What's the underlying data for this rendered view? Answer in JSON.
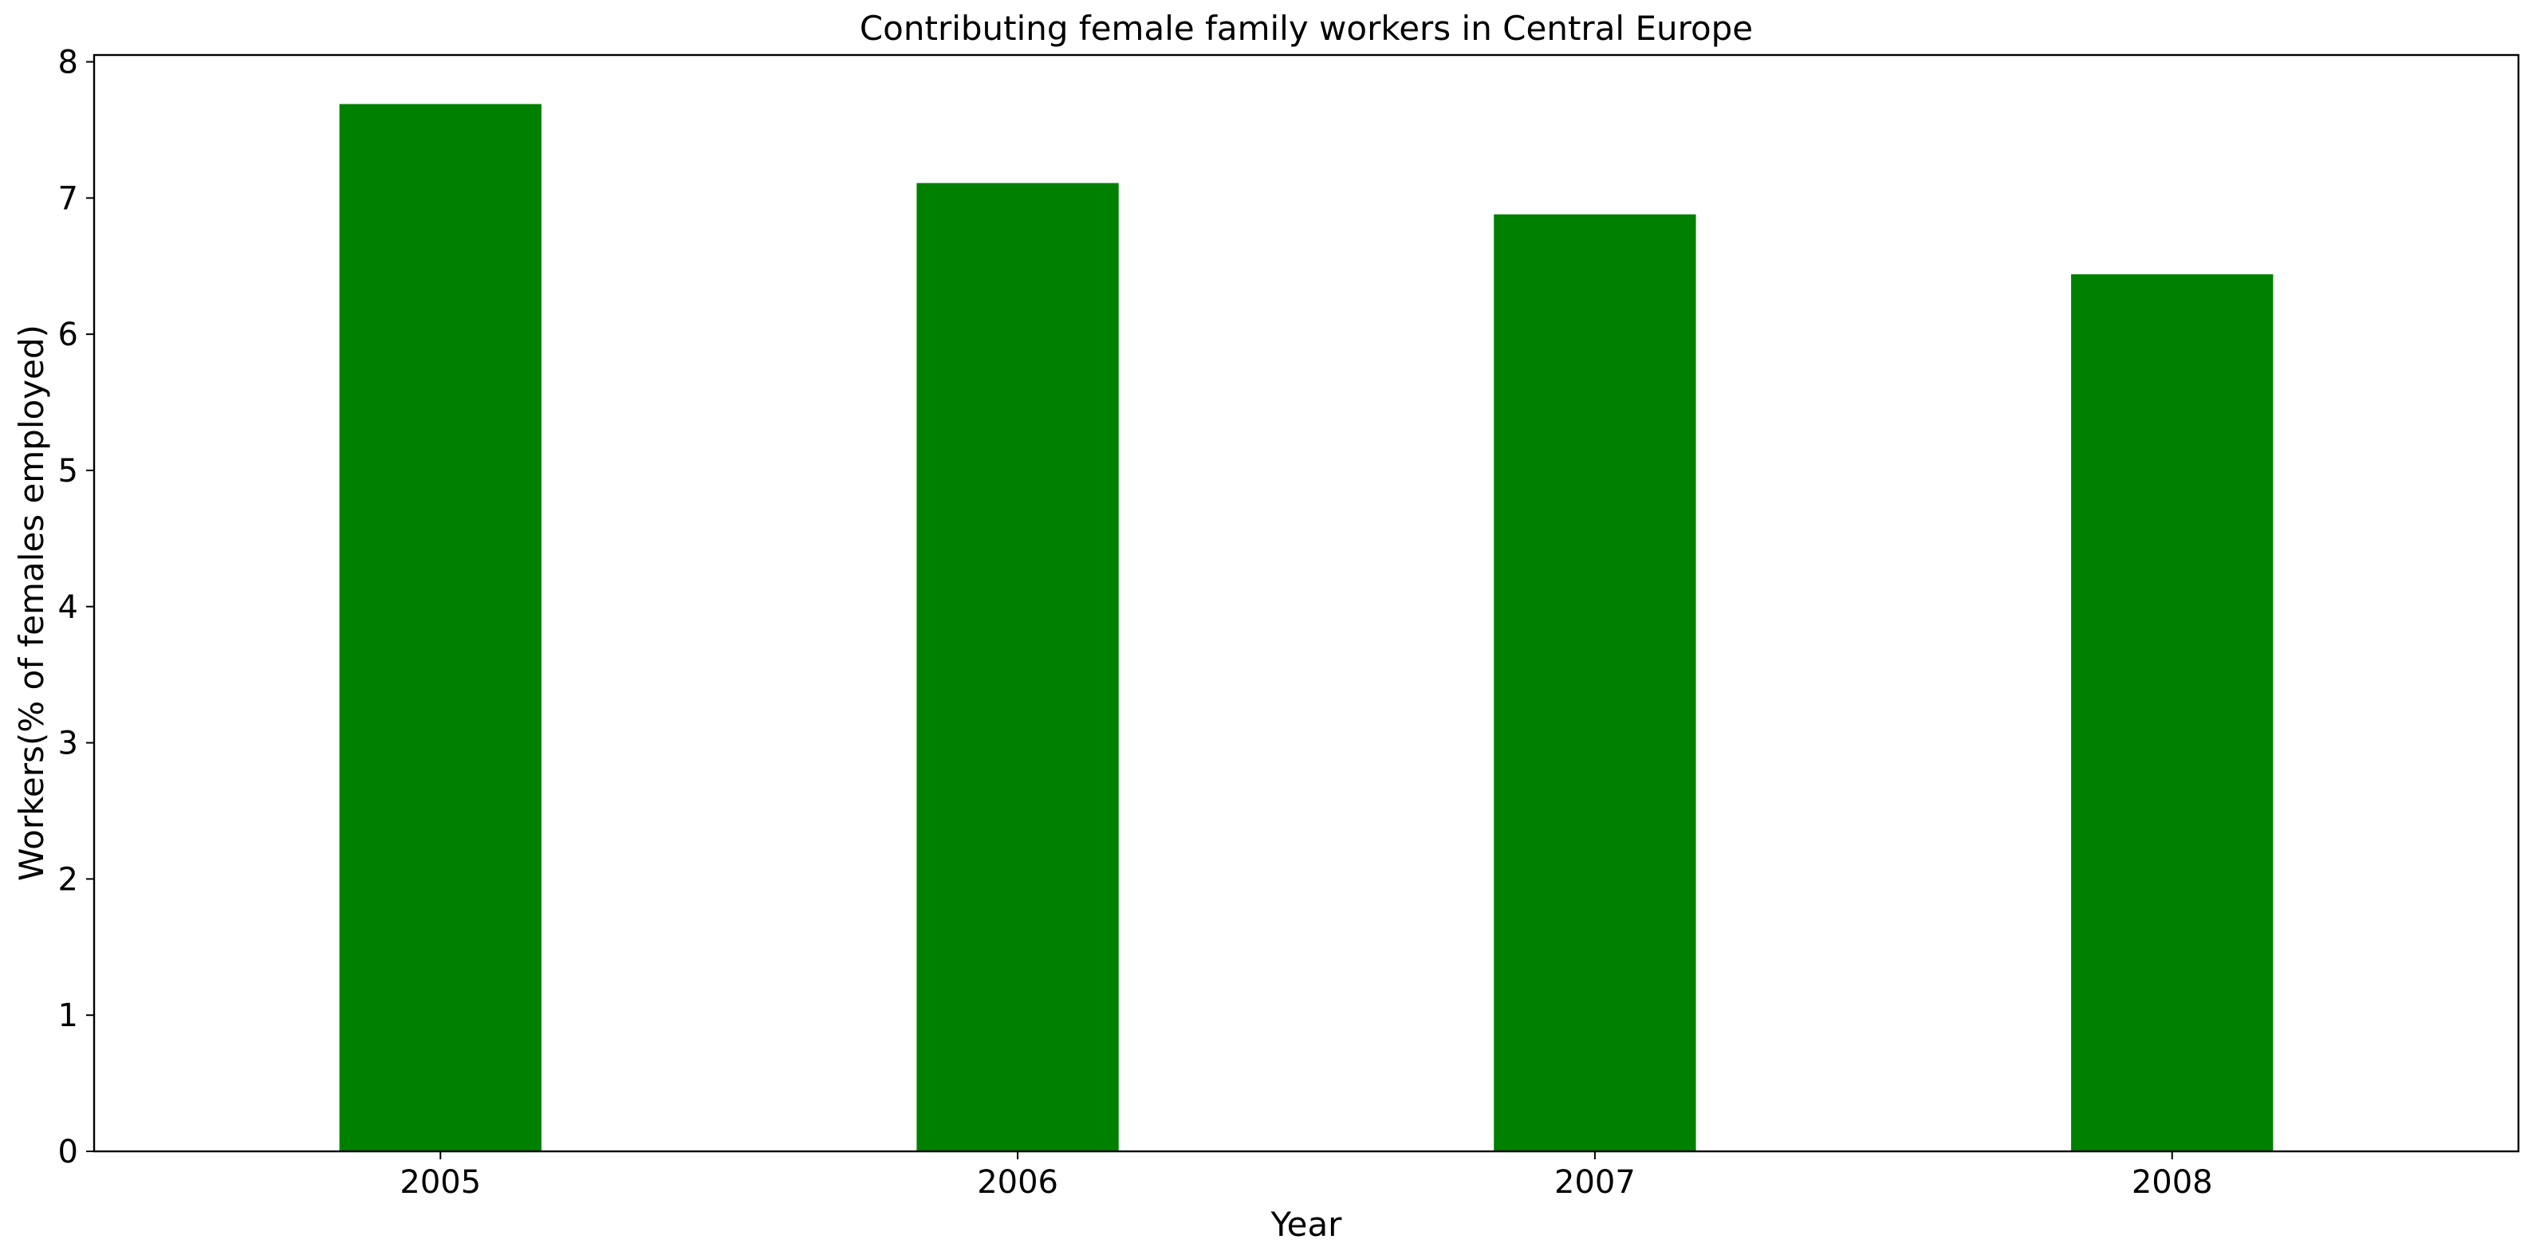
{
  "chart_data": {
    "type": "bar",
    "title": "Contributing female family workers in Central Europe",
    "xlabel": "Year",
    "ylabel": "Workers(% of females employed)",
    "categories": [
      "2005",
      "2006",
      "2007",
      "2008"
    ],
    "values": [
      7.69,
      7.11,
      6.88,
      6.44
    ],
    "ylim": [
      0,
      8.05
    ],
    "yticks": [
      0,
      1,
      2,
      3,
      4,
      5,
      6,
      7,
      8
    ],
    "bar_color": "#008000",
    "grid": false,
    "legend": "none"
  }
}
